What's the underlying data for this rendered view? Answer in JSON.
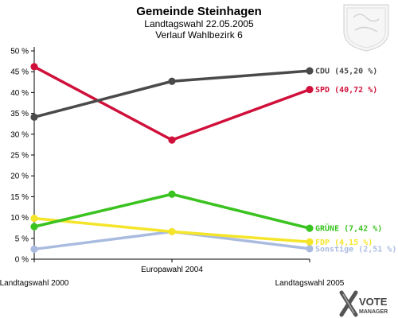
{
  "chart_data": {
    "type": "line",
    "title": "Gemeinde Steinhagen",
    "subtitle1": "Landtagswahl 22.05.2005",
    "subtitle2": "Verlauf Wahlbezirk 6",
    "categories": [
      "Landtagswahl 2000",
      "Europawahl 2004",
      "Landtagswahl 2005"
    ],
    "ylim": [
      0,
      50
    ],
    "yticks": [
      0,
      5,
      10,
      15,
      20,
      25,
      30,
      35,
      40,
      45,
      50
    ],
    "ytick_labels": [
      "0 %",
      "5 %",
      "10 %",
      "15 %",
      "20 %",
      "25 %",
      "30 %",
      "35 %",
      "40 %",
      "45 %",
      "50 %"
    ],
    "grid": false,
    "series": [
      {
        "name": "Sonstige",
        "values": [
          2.4,
          6.6,
          2.51
        ],
        "color": "#aabbe0",
        "label": "Sonstige (2,51 %)"
      },
      {
        "name": "FDP",
        "values": [
          9.8,
          6.6,
          4.15
        ],
        "color": "#f5e52a",
        "label": "FDP (4,15 %)"
      },
      {
        "name": "GRÜNE",
        "values": [
          7.8,
          15.6,
          7.42
        ],
        "color": "#3ac320",
        "label": "GRÜNE (7,42 %)"
      },
      {
        "name": "SPD",
        "values": [
          46.2,
          28.6,
          40.72
        ],
        "color": "#d0103a",
        "label": "SPD (40,72 %)"
      },
      {
        "name": "CDU",
        "values": [
          34.1,
          42.7,
          45.2
        ],
        "color": "#4a4a4a",
        "label": "CDU (45,20 %)"
      }
    ]
  },
  "logo": {
    "line1": "VOTE",
    "line2": "MANAGER"
  }
}
